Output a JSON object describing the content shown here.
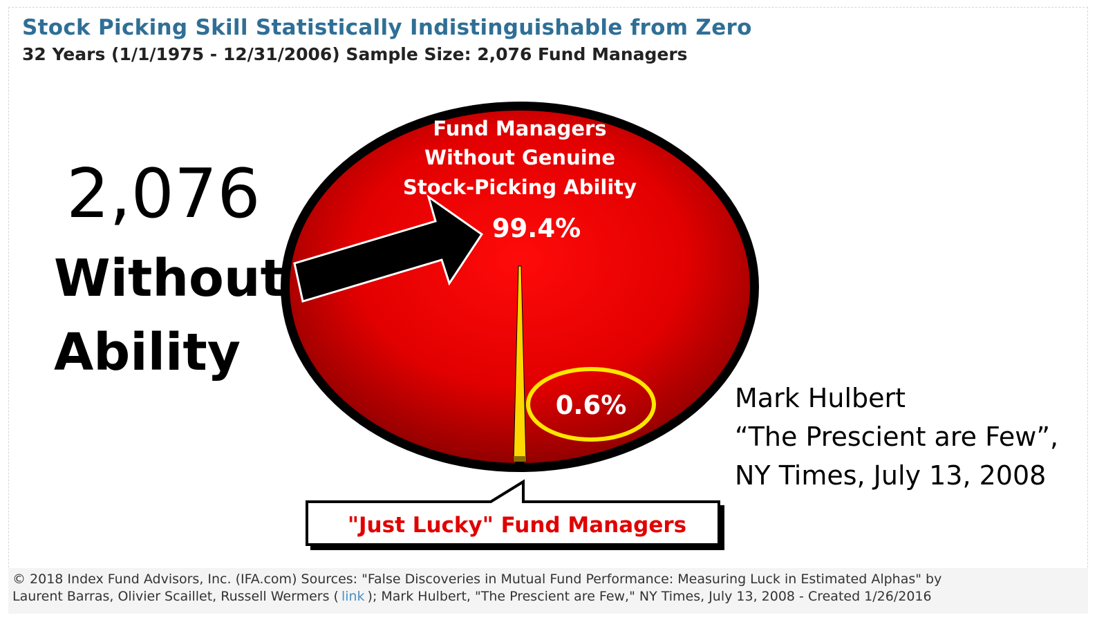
{
  "header": {
    "title": "Stock Picking Skill Statistically Indistinguishable from Zero",
    "subtitle": "32 Years (1/1/1975 - 12/31/2006) Sample Size: 2,076 Fund Managers"
  },
  "callout_left": {
    "count": "2,076",
    "line1": "Without",
    "line2": "Ability"
  },
  "citation": {
    "line1": "Mark Hulbert",
    "line2": "“The Prescient are Few”,",
    "line3": "NY Times, July 13, 2008"
  },
  "chart_data": {
    "type": "pie",
    "slices": [
      {
        "label_lines": [
          "Fund Managers",
          "Without Genuine",
          "Stock-Picking Ability"
        ],
        "value_label": "99.4%",
        "value": 99.4,
        "color": "#e00000"
      },
      {
        "label_lines": [
          "\"Just Lucky\" Fund Managers"
        ],
        "value_label": "0.6%",
        "value": 0.6,
        "color": "#ffd700"
      }
    ]
  },
  "footer": {
    "line1": "© 2018 Index Fund Advisors, Inc. (IFA.com) Sources: \"False Discoveries in Mutual Fund Performance: Measuring Luck in Estimated Alphas\" by",
    "line2_a": "Laurent Barras, Olivier Scaillet, Russell Wermers (",
    "link_label": "link",
    "line2_b": "); Mark Hulbert, \"The Prescient are Few,\" NY Times, July 13, 2008 - Created 1/26/2016"
  },
  "colors": {
    "title": "#2f6f96",
    "pie_main": "#e00000",
    "pie_lucky": "#ffd700",
    "highlight_circle": "#ffe600",
    "lucky_label": "#e00000"
  }
}
